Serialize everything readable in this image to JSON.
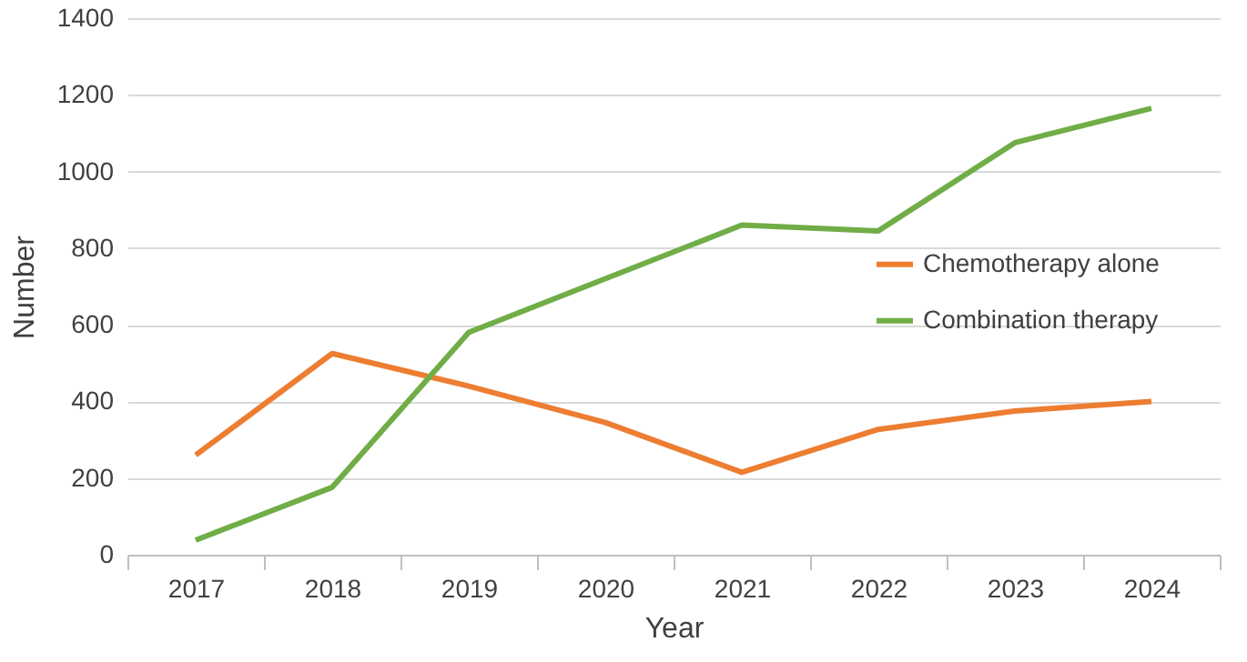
{
  "chart_data": {
    "type": "line",
    "xlabel": "Year",
    "ylabel": "Number",
    "categories": [
      "2017",
      "2018",
      "2019",
      "2020",
      "2021",
      "2022",
      "2023",
      "2024"
    ],
    "series": [
      {
        "name": "Chemotherapy alone",
        "color": "#ed7d31",
        "values": [
          260,
          525,
          440,
          345,
          215,
          327,
          375,
          400
        ]
      },
      {
        "name": "Combination therapy",
        "color": "#70ad47",
        "values": [
          38,
          176,
          580,
          720,
          860,
          845,
          1075,
          1165
        ]
      }
    ],
    "ylim": [
      0,
      1400
    ],
    "yticks": [
      0,
      200,
      400,
      600,
      800,
      1000,
      1200,
      1400
    ],
    "grid": "y",
    "legend": "right",
    "marker": "none",
    "line_style": "solid"
  }
}
